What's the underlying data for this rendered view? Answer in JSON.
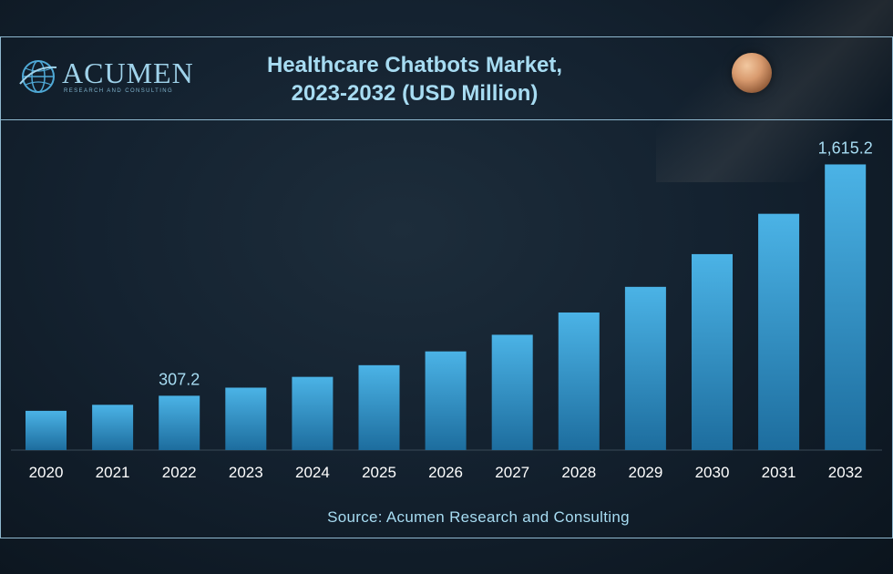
{
  "header": {
    "logo_text": "ACUMEN",
    "logo_tagline": "RESEARCH AND CONSULTING",
    "title_line1": "Healthcare Chatbots Market,",
    "title_line2": "2023-2032 (USD Million)"
  },
  "footer": {
    "source": "Source: Acumen Research and Consulting"
  },
  "colors": {
    "bar_top": "#4bb3e6",
    "bar_bottom": "#1d6d9e",
    "text": "#a7dcf2",
    "axis_text": "#ffffff"
  },
  "chart_data": {
    "type": "bar",
    "title": "Healthcare Chatbots Market, 2023-2032 (USD Million)",
    "xlabel": "",
    "ylabel": "",
    "categories": [
      "2020",
      "2021",
      "2022",
      "2023",
      "2024",
      "2025",
      "2026",
      "2027",
      "2028",
      "2029",
      "2030",
      "2031",
      "2032"
    ],
    "values": [
      222,
      256,
      307.2,
      353,
      414,
      480,
      558,
      652,
      778,
      923,
      1108,
      1336,
      1615.2
    ],
    "data_labels": [
      "",
      "",
      "307.2",
      "",
      "",
      "",
      "",
      "",
      "",
      "",
      "",
      "",
      "1,615.2"
    ],
    "ylim": [
      0,
      1700
    ],
    "grid": false,
    "legend": "none"
  }
}
